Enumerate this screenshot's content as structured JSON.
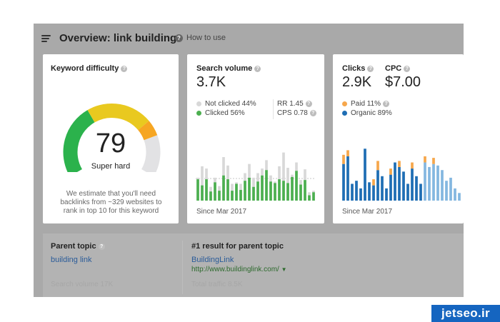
{
  "header": {
    "title": "Overview: link building",
    "how_to_use": "How to use"
  },
  "keyword_difficulty": {
    "title": "Keyword difficulty",
    "value": "79",
    "label": "Super hard",
    "note": "We estimate that you'll need backlinks from ~329 websites to rank in top 10 for this keyword",
    "score": 79,
    "colors": {
      "red": "#e74c3c",
      "green": "#2bb24c",
      "yellow": "#e9c91f",
      "orange": "#f6a623",
      "track": "#e2e2e4"
    }
  },
  "search_volume": {
    "title": "Search volume",
    "value": "3.7K",
    "not_clicked": "Not clicked 44%",
    "clicked": "Clicked 56%",
    "rr": "RR 1.45",
    "cps": "CPS 0.78",
    "since": "Since Mar 2017",
    "colors": {
      "clicked": "#4caf50",
      "not_clicked": "#d8d8d8"
    }
  },
  "clicks": {
    "title": "Clicks",
    "value": "2.9K",
    "paid": "Paid 11%",
    "organic": "Organic 89%",
    "since": "Since Mar 2017",
    "colors": {
      "paid": "#f6a74c",
      "organic": "#1f6eb4",
      "organic_light": "#84b7e0"
    }
  },
  "cpc": {
    "title": "CPC",
    "value": "$7.00"
  },
  "parent_topic": {
    "title": "Parent topic",
    "link": "building link",
    "search_volume": "Search volume 17K"
  },
  "top_result": {
    "title": "#1 result for parent topic",
    "name": "BuildingLink",
    "url": "http://www.buildinglink.com/",
    "total_traffic": "Total traffic 8.5K"
  },
  "watermark": "jetseo.ir",
  "chart_data": [
    {
      "type": "bar",
      "title": "Search volume",
      "categories": [
        "1",
        "2",
        "3",
        "4",
        "5",
        "6",
        "7",
        "8",
        "9",
        "10",
        "11",
        "12",
        "13",
        "14",
        "15",
        "16",
        "17",
        "18",
        "19",
        "20",
        "21",
        "22",
        "23",
        "24",
        "25",
        "26",
        "27",
        "28"
      ],
      "series": [
        {
          "name": "Clicked",
          "values": [
            28,
            20,
            28,
            12,
            24,
            13,
            33,
            28,
            13,
            22,
            14,
            26,
            30,
            18,
            25,
            33,
            40,
            25,
            23,
            28,
            26,
            23,
            31,
            39,
            21,
            27,
            7,
            11
          ]
        },
        {
          "name": "Not clicked",
          "values": [
            30,
            45,
            42,
            18,
            30,
            19,
            57,
            46,
            22,
            24,
            22,
            36,
            48,
            30,
            36,
            42,
            53,
            33,
            25,
            45,
            63,
            43,
            34,
            50,
            27,
            41,
            11,
            13
          ]
        }
      ],
      "ylim": [
        0,
        72
      ]
    },
    {
      "type": "bar",
      "title": "Clicks",
      "categories": [
        "1",
        "2",
        "3",
        "4",
        "5",
        "6",
        "7",
        "8",
        "9",
        "10",
        "11",
        "12",
        "13",
        "14",
        "15",
        "16",
        "17",
        "18",
        "19",
        "20",
        "21",
        "22",
        "23",
        "24",
        "25",
        "26",
        "27",
        "28"
      ],
      "series": [
        {
          "name": "Organic",
          "values": [
            48,
            58,
            22,
            26,
            16,
            68,
            24,
            20,
            40,
            32,
            16,
            34,
            50,
            44,
            38,
            22,
            42,
            32,
            22,
            50,
            44,
            48,
            46,
            40,
            26,
            30,
            16,
            10
          ]
        },
        {
          "name": "Paid",
          "values": [
            12,
            8,
            0,
            0,
            0,
            0,
            0,
            8,
            12,
            0,
            0,
            8,
            0,
            8,
            0,
            0,
            8,
            0,
            0,
            8,
            0,
            8,
            0,
            0,
            0,
            0,
            0,
            0
          ]
        }
      ],
      "ylim": [
        0,
        72
      ]
    }
  ]
}
